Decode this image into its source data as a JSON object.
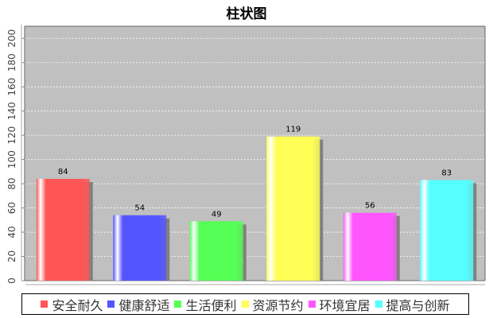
{
  "chart_data": {
    "type": "bar",
    "title": "柱状图",
    "categories": [
      "安全耐久",
      "健康舒适",
      "生活便利",
      "资源节约",
      "环境宜居",
      "提高与创新"
    ],
    "values": [
      84,
      54,
      49,
      119,
      56,
      83
    ],
    "colors": [
      "#ff5555",
      "#5555ff",
      "#55ff55",
      "#ffff55",
      "#ff55ff",
      "#55ffff"
    ],
    "ylim": [
      0,
      210
    ],
    "yticks": [
      0,
      20,
      40,
      60,
      80,
      100,
      120,
      140,
      160,
      180,
      200
    ],
    "grid": true,
    "legend_position": "bottom",
    "plot_background": "#c0c0c0"
  }
}
